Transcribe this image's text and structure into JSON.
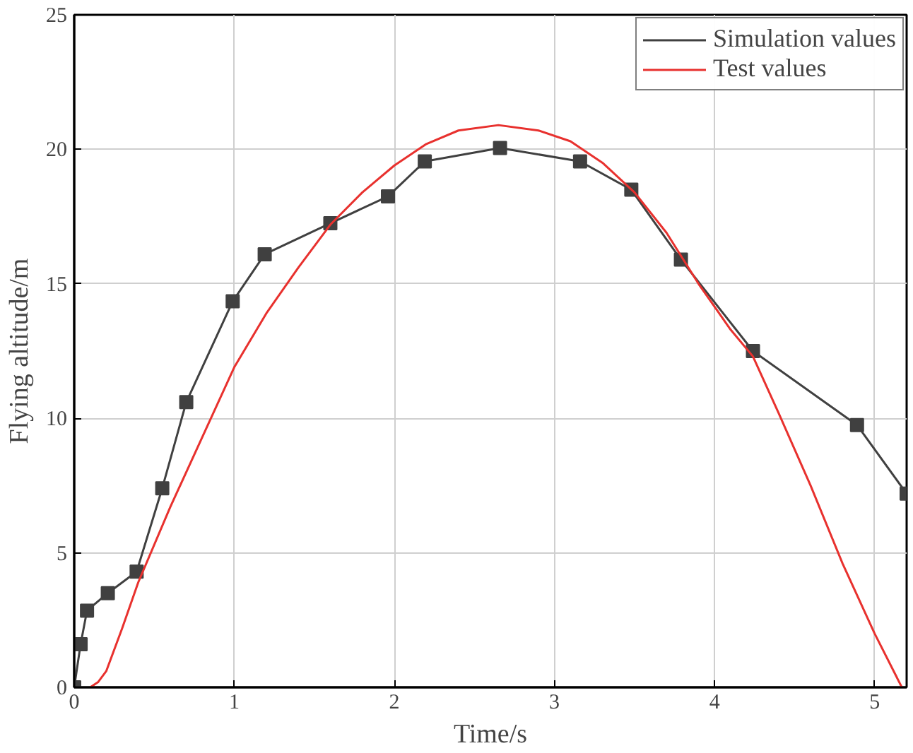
{
  "chart_data": {
    "type": "line",
    "xlabel": "Time/s",
    "ylabel": "Flying altitude/m",
    "xlim": [
      0,
      5.2
    ],
    "ylim": [
      0,
      25
    ],
    "xticks": [
      0,
      1,
      2,
      3,
      4,
      5
    ],
    "yticks": [
      0,
      5,
      10,
      15,
      20,
      25
    ],
    "grid": true,
    "legend": "top right",
    "series": [
      {
        "name": "Simulation values",
        "color": "#404040",
        "marker": "square",
        "x": [
          0,
          0.04,
          0.08,
          0.21,
          0.39,
          0.55,
          0.7,
          0.99,
          1.19,
          1.6,
          1.96,
          2.19,
          2.66,
          3.16,
          3.48,
          3.79,
          4.24,
          4.89,
          5.2
        ],
        "values": [
          0,
          1.6,
          2.85,
          3.5,
          4.3,
          7.4,
          10.6,
          14.35,
          16.1,
          17.25,
          18.25,
          19.55,
          20.05,
          19.55,
          18.5,
          15.9,
          12.5,
          9.75,
          7.2
        ]
      },
      {
        "name": "Test values",
        "color": "#e8312e",
        "marker": "none",
        "x": [
          0.1,
          0.15,
          0.2,
          0.3,
          0.4,
          0.6,
          0.8,
          1.0,
          1.2,
          1.4,
          1.6,
          1.8,
          2.0,
          2.2,
          2.4,
          2.65,
          2.9,
          3.1,
          3.3,
          3.5,
          3.7,
          3.9,
          4.1,
          4.24,
          4.4,
          4.6,
          4.8,
          5.0,
          5.17
        ],
        "values": [
          0,
          0.2,
          0.6,
          2.2,
          3.9,
          6.7,
          9.3,
          11.9,
          13.9,
          15.6,
          17.2,
          18.4,
          19.4,
          20.2,
          20.7,
          20.9,
          20.7,
          20.3,
          19.5,
          18.4,
          16.9,
          15.0,
          13.3,
          12.3,
          10.2,
          7.5,
          4.6,
          2.0,
          0
        ]
      }
    ]
  }
}
